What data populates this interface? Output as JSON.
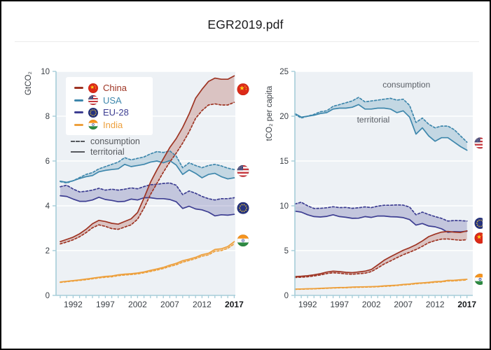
{
  "window": {
    "title": "EGR2019.pdf"
  },
  "colors": {
    "china": "#9e3423",
    "usa": "#3e87ac",
    "eu": "#3d3e92",
    "india": "#eda03d",
    "axis": "#a6cdd9",
    "grid": "#ffffff",
    "plot_bg": "#edf1f5",
    "tick_label": "#3a3f45",
    "bold_tick_label": "#17191c",
    "annotation": "#5a5f66",
    "page_bg": "#ffffff",
    "border": "#000000"
  },
  "legend": {
    "items": [
      {
        "id": "china",
        "label": "China",
        "icon": "china-flag-icon"
      },
      {
        "id": "usa",
        "label": "USA",
        "icon": "usa-flag-icon"
      },
      {
        "id": "eu",
        "label": "EU-28",
        "icon": "eu-flag-icon"
      },
      {
        "id": "india",
        "label": "India",
        "icon": "india-flag-icon"
      }
    ],
    "styles": [
      {
        "id": "consumption",
        "label": "consumption",
        "line": "dashed"
      },
      {
        "id": "territorial",
        "label": "territorial",
        "line": "solid"
      }
    ]
  },
  "chart_data": [
    {
      "id": "left",
      "type": "line",
      "title": "",
      "ylabel": "GtCO₂",
      "xlabel": "",
      "ylim": [
        0,
        10
      ],
      "yticks": [
        0,
        2,
        4,
        6,
        8,
        10
      ],
      "xticks": [
        1992,
        1997,
        2002,
        2007,
        2012,
        2017
      ],
      "xtick_bold": 2017,
      "grid": true,
      "years": [
        1990,
        1991,
        1992,
        1993,
        1994,
        1995,
        1996,
        1997,
        1998,
        1999,
        2000,
        2001,
        2002,
        2003,
        2004,
        2005,
        2006,
        2007,
        2008,
        2009,
        2010,
        2011,
        2012,
        2013,
        2014,
        2015,
        2016,
        2017
      ],
      "series": [
        {
          "name": "USA territorial",
          "country": "usa",
          "style": "territorial",
          "values": [
            5.1,
            5.05,
            5.12,
            5.22,
            5.3,
            5.35,
            5.52,
            5.58,
            5.62,
            5.65,
            5.85,
            5.75,
            5.8,
            5.85,
            5.95,
            6.0,
            5.92,
            6.02,
            5.82,
            5.4,
            5.6,
            5.45,
            5.25,
            5.4,
            5.45,
            5.3,
            5.2,
            5.25
          ]
        },
        {
          "name": "USA consumption",
          "country": "usa",
          "style": "consumption",
          "values": [
            5.08,
            5.02,
            5.12,
            5.26,
            5.4,
            5.48,
            5.65,
            5.75,
            5.85,
            5.95,
            6.15,
            6.05,
            6.12,
            6.18,
            6.32,
            6.42,
            6.38,
            6.45,
            6.22,
            5.7,
            5.92,
            5.8,
            5.7,
            5.8,
            5.85,
            5.78,
            5.68,
            5.62
          ]
        },
        {
          "name": "EU-28 territorial",
          "country": "eu",
          "style": "territorial",
          "values": [
            4.45,
            4.42,
            4.3,
            4.2,
            4.2,
            4.26,
            4.38,
            4.28,
            4.24,
            4.18,
            4.2,
            4.3,
            4.26,
            4.36,
            4.36,
            4.32,
            4.32,
            4.28,
            4.18,
            3.88,
            3.98,
            3.86,
            3.82,
            3.72,
            3.55,
            3.6,
            3.58,
            3.62
          ]
        },
        {
          "name": "EU-28 consumption",
          "country": "eu",
          "style": "consumption",
          "values": [
            4.85,
            4.92,
            4.75,
            4.62,
            4.65,
            4.7,
            4.78,
            4.7,
            4.74,
            4.7,
            4.74,
            4.8,
            4.76,
            4.86,
            4.94,
            4.96,
            5.0,
            5.02,
            4.92,
            4.5,
            4.66,
            4.56,
            4.42,
            4.32,
            4.26,
            4.32,
            4.32,
            4.36
          ]
        },
        {
          "name": "India territorial",
          "country": "india",
          "style": "territorial",
          "values": [
            0.6,
            0.63,
            0.66,
            0.69,
            0.73,
            0.77,
            0.81,
            0.85,
            0.87,
            0.92,
            0.95,
            0.97,
            1.0,
            1.05,
            1.12,
            1.18,
            1.25,
            1.35,
            1.43,
            1.55,
            1.62,
            1.7,
            1.82,
            1.88,
            2.05,
            2.08,
            2.18,
            2.4
          ]
        },
        {
          "name": "India consumption",
          "country": "india",
          "style": "consumption",
          "values": [
            0.58,
            0.61,
            0.64,
            0.67,
            0.7,
            0.74,
            0.78,
            0.81,
            0.83,
            0.88,
            0.91,
            0.93,
            0.96,
            1.01,
            1.07,
            1.13,
            1.2,
            1.29,
            1.37,
            1.48,
            1.56,
            1.64,
            1.75,
            1.81,
            1.97,
            2.0,
            2.1,
            2.3
          ]
        },
        {
          "name": "China territorial",
          "country": "china",
          "style": "territorial",
          "values": [
            2.4,
            2.5,
            2.6,
            2.75,
            2.95,
            3.2,
            3.35,
            3.3,
            3.22,
            3.18,
            3.3,
            3.42,
            3.7,
            4.35,
            5.05,
            5.6,
            6.1,
            6.6,
            7.0,
            7.5,
            8.1,
            8.8,
            9.2,
            9.55,
            9.7,
            9.65,
            9.65,
            9.8
          ]
        },
        {
          "name": "China consumption",
          "country": "china",
          "style": "consumption",
          "values": [
            2.3,
            2.38,
            2.48,
            2.62,
            2.8,
            3.02,
            3.15,
            3.08,
            2.98,
            2.95,
            3.05,
            3.15,
            3.4,
            3.9,
            4.5,
            5.0,
            5.5,
            5.95,
            6.35,
            6.8,
            7.3,
            7.9,
            8.25,
            8.5,
            8.55,
            8.5,
            8.5,
            8.62
          ]
        }
      ],
      "flag_markers": [
        {
          "country": "china",
          "value": 9.2
        },
        {
          "country": "usa",
          "value": 5.55
        },
        {
          "country": "eu",
          "value": 3.9
        },
        {
          "country": "india",
          "value": 2.45
        }
      ],
      "annotations": []
    },
    {
      "id": "right",
      "type": "line",
      "title": "",
      "ylabel": "tCO₂ per capita",
      "xlabel": "",
      "ylim": [
        0,
        25
      ],
      "yticks": [
        0,
        5,
        10,
        15,
        20,
        25
      ],
      "xticks": [
        1992,
        1997,
        2002,
        2007,
        2012,
        2017
      ],
      "xtick_bold": 2017,
      "grid": true,
      "years": [
        1990,
        1991,
        1992,
        1993,
        1994,
        1995,
        1996,
        1997,
        1998,
        1999,
        2000,
        2001,
        2002,
        2003,
        2004,
        2005,
        2006,
        2007,
        2008,
        2009,
        2010,
        2011,
        2012,
        2013,
        2014,
        2015,
        2016,
        2017
      ],
      "series": [
        {
          "name": "USA territorial",
          "country": "usa",
          "style": "territorial",
          "values": [
            20.3,
            19.9,
            20.0,
            20.1,
            20.3,
            20.4,
            20.8,
            20.9,
            20.9,
            21.0,
            21.3,
            20.8,
            20.8,
            20.9,
            20.9,
            20.8,
            20.4,
            20.6,
            19.9,
            18.0,
            18.7,
            17.8,
            17.2,
            17.6,
            17.6,
            17.1,
            16.6,
            16.2
          ]
        },
        {
          "name": "USA consumption",
          "country": "usa",
          "style": "consumption",
          "values": [
            20.2,
            19.8,
            20.0,
            20.2,
            20.5,
            20.6,
            21.1,
            21.3,
            21.5,
            21.7,
            22.1,
            21.6,
            21.7,
            21.8,
            21.9,
            22.0,
            21.8,
            21.9,
            21.2,
            19.3,
            19.8,
            19.1,
            18.7,
            18.9,
            18.9,
            18.5,
            17.8,
            17.1
          ]
        },
        {
          "name": "EU-28 territorial",
          "country": "eu",
          "style": "territorial",
          "values": [
            9.4,
            9.3,
            9.0,
            8.8,
            8.75,
            8.82,
            9.0,
            8.8,
            8.72,
            8.6,
            8.62,
            8.8,
            8.7,
            8.86,
            8.86,
            8.78,
            8.76,
            8.68,
            8.46,
            7.84,
            8.02,
            7.74,
            7.66,
            7.44,
            7.04,
            7.12,
            7.1,
            7.16
          ]
        },
        {
          "name": "EU-28 consumption",
          "country": "eu",
          "style": "consumption",
          "values": [
            10.2,
            10.4,
            10.0,
            9.7,
            9.72,
            9.78,
            9.9,
            9.8,
            9.82,
            9.72,
            9.78,
            9.88,
            9.8,
            9.96,
            10.06,
            10.06,
            10.1,
            10.08,
            9.86,
            9.0,
            9.3,
            9.02,
            8.8,
            8.6,
            8.3,
            8.36,
            8.34,
            8.3
          ]
        },
        {
          "name": "India territorial",
          "country": "india",
          "style": "territorial",
          "values": [
            0.7,
            0.72,
            0.74,
            0.76,
            0.79,
            0.82,
            0.85,
            0.88,
            0.89,
            0.93,
            0.95,
            0.96,
            0.98,
            1.01,
            1.06,
            1.1,
            1.15,
            1.22,
            1.27,
            1.36,
            1.4,
            1.45,
            1.53,
            1.56,
            1.68,
            1.69,
            1.75,
            1.8
          ]
        },
        {
          "name": "India consumption",
          "country": "india",
          "style": "consumption",
          "values": [
            0.67,
            0.69,
            0.71,
            0.73,
            0.76,
            0.79,
            0.82,
            0.84,
            0.85,
            0.89,
            0.91,
            0.92,
            0.94,
            0.97,
            1.01,
            1.05,
            1.1,
            1.17,
            1.22,
            1.3,
            1.35,
            1.39,
            1.47,
            1.5,
            1.61,
            1.62,
            1.68,
            1.72
          ]
        },
        {
          "name": "China territorial",
          "country": "china",
          "style": "territorial",
          "values": [
            2.1,
            2.14,
            2.2,
            2.3,
            2.42,
            2.6,
            2.7,
            2.66,
            2.58,
            2.54,
            2.62,
            2.7,
            2.9,
            3.4,
            3.92,
            4.32,
            4.68,
            5.04,
            5.32,
            5.66,
            6.08,
            6.56,
            6.84,
            7.06,
            7.14,
            7.06,
            7.02,
            7.2
          ]
        },
        {
          "name": "China consumption",
          "country": "china",
          "style": "consumption",
          "values": [
            2.0,
            2.03,
            2.08,
            2.17,
            2.28,
            2.44,
            2.52,
            2.48,
            2.4,
            2.36,
            2.42,
            2.48,
            2.66,
            3.06,
            3.5,
            3.84,
            4.2,
            4.54,
            4.82,
            5.12,
            5.48,
            5.88,
            6.12,
            6.28,
            6.3,
            6.22,
            6.16,
            6.22
          ]
        }
      ],
      "flag_markers": [
        {
          "country": "usa",
          "value": 17.0
        },
        {
          "country": "eu",
          "value": 8.05
        },
        {
          "country": "china",
          "value": 6.4
        },
        {
          "country": "india",
          "value": 1.8
        }
      ],
      "annotations": [
        {
          "text": "consumption",
          "year": 2007.5,
          "value": 23.2
        },
        {
          "text": "territorial",
          "year": 2002.3,
          "value": 19.3
        }
      ]
    }
  ]
}
